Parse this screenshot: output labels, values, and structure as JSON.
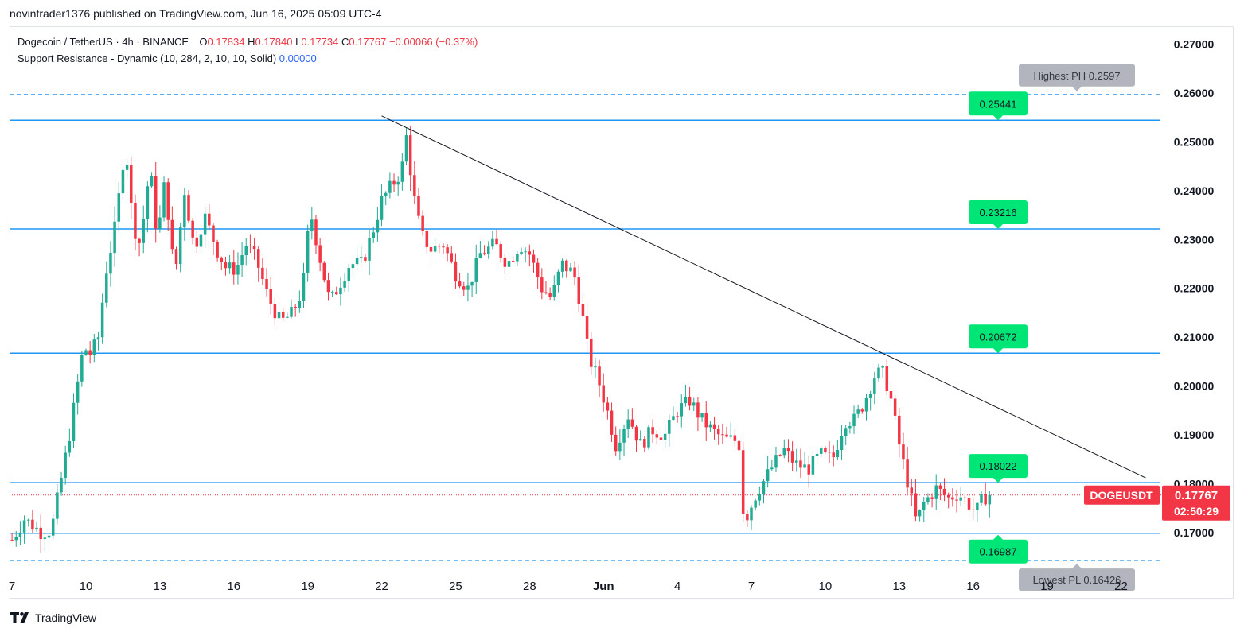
{
  "header": {
    "publish_note": "novintrader1376 published on TradingView.com, Jun 16, 2025 05:09 UTC-4"
  },
  "legend": {
    "symbol": "Dogecoin / TetherUS · 4h · BINANCE",
    "o_label": "O",
    "o_value": "0.17834",
    "h_label": "H",
    "h_value": "0.17840",
    "l_label": "L",
    "l_value": "0.17734",
    "c_label": "C",
    "c_value": "0.17767",
    "change": "−0.00066 (−0.37%)",
    "indicator": "Support Resistance - Dynamic (10, 284, 2, 10, 10, Solid)",
    "indicator_value": "0.00000"
  },
  "footer": {
    "brand": "TradingView"
  },
  "colors": {
    "up": "#22ab94",
    "down": "#f23645",
    "level_line": "#2196f3",
    "level_label_bg": "#00e676",
    "pivot_label_bg": "#b2b5be",
    "trendline": "#131722",
    "price_tag_bg": "#f23645"
  },
  "chart_data": {
    "type": "candlestick",
    "title": "Dogecoin / TetherUS · 4h · BINANCE",
    "ylim": [
      0.1625,
      0.2735
    ],
    "y_ticks": [
      "0.27000",
      "0.26000",
      "0.25000",
      "0.24000",
      "0.23000",
      "0.22000",
      "0.21000",
      "0.20000",
      "0.19000",
      "0.18000",
      "0.17000"
    ],
    "y_tick_values": [
      0.27,
      0.26,
      0.25,
      0.24,
      0.23,
      0.22,
      0.21,
      0.2,
      0.19,
      0.18,
      0.17
    ],
    "x_ticks": [
      "7",
      "10",
      "13",
      "16",
      "19",
      "22",
      "25",
      "28",
      "Jun",
      "4",
      "7",
      "10",
      "13",
      "16",
      "19",
      "22"
    ],
    "x_tick_days": [
      0,
      3,
      6,
      9,
      12,
      15,
      18,
      21,
      24,
      27,
      30,
      33,
      36,
      39,
      42,
      45
    ],
    "day_range": [
      -0.1,
      46.6
    ],
    "levels": [
      {
        "value": 0.25441,
        "label": "0.25441",
        "marker": "down"
      },
      {
        "value": 0.23216,
        "label": "0.23216",
        "marker": "down"
      },
      {
        "value": 0.20672,
        "label": "0.20672",
        "marker": "down"
      },
      {
        "value": 0.18022,
        "label": "0.18022",
        "marker": "down"
      },
      {
        "value": 0.16987,
        "label": "0.16987",
        "marker": "up"
      }
    ],
    "pivots": [
      {
        "value": 0.2597,
        "label": "Highest PH 0.2597"
      },
      {
        "value": 0.16426,
        "label": "Lowest PL 0.16426"
      }
    ],
    "trendline": {
      "from": {
        "day": 15.0,
        "price": 0.2553
      },
      "to": {
        "day": 46.0,
        "price": 0.1812
      }
    },
    "last_price": {
      "value": 0.17767,
      "symbol": "DOGEUSDT",
      "price_label": "0.17767",
      "countdown": "02:50:29"
    },
    "anchors": [
      [
        0.0,
        0.1685
      ],
      [
        0.5,
        0.1728
      ],
      [
        1.2,
        0.17
      ],
      [
        1.6,
        0.1705
      ],
      [
        2.3,
        0.189
      ],
      [
        2.9,
        0.208
      ],
      [
        3.2,
        0.2065
      ],
      [
        3.5,
        0.21
      ],
      [
        3.8,
        0.223
      ],
      [
        4.2,
        0.233
      ],
      [
        4.6,
        0.25
      ],
      [
        4.9,
        0.233
      ],
      [
        5.2,
        0.229
      ],
      [
        5.6,
        0.245
      ],
      [
        5.9,
        0.23
      ],
      [
        6.2,
        0.242
      ],
      [
        6.6,
        0.222
      ],
      [
        7.0,
        0.24
      ],
      [
        7.4,
        0.228
      ],
      [
        7.8,
        0.235
      ],
      [
        8.3,
        0.228
      ],
      [
        8.7,
        0.224
      ],
      [
        9.1,
        0.224
      ],
      [
        9.5,
        0.229
      ],
      [
        9.9,
        0.226
      ],
      [
        10.4,
        0.218
      ],
      [
        10.9,
        0.213
      ],
      [
        11.4,
        0.215
      ],
      [
        11.8,
        0.22
      ],
      [
        12.1,
        0.236
      ],
      [
        12.5,
        0.226
      ],
      [
        12.9,
        0.217
      ],
      [
        13.3,
        0.221
      ],
      [
        13.7,
        0.225
      ],
      [
        14.2,
        0.225
      ],
      [
        14.6,
        0.231
      ],
      [
        15.0,
        0.238
      ],
      [
        15.4,
        0.241
      ],
      [
        15.8,
        0.244
      ],
      [
        16.0,
        0.251
      ],
      [
        16.3,
        0.239
      ],
      [
        16.6,
        0.231
      ],
      [
        17.0,
        0.228
      ],
      [
        17.5,
        0.229
      ],
      [
        18.0,
        0.223
      ],
      [
        18.5,
        0.22
      ],
      [
        19.0,
        0.227
      ],
      [
        19.6,
        0.229
      ],
      [
        20.1,
        0.225
      ],
      [
        20.6,
        0.229
      ],
      [
        21.0,
        0.227
      ],
      [
        21.5,
        0.22
      ],
      [
        21.9,
        0.218
      ],
      [
        22.3,
        0.225
      ],
      [
        22.8,
        0.223
      ],
      [
        23.1,
        0.216
      ],
      [
        23.4,
        0.206
      ],
      [
        23.8,
        0.201
      ],
      [
        24.1,
        0.196
      ],
      [
        24.5,
        0.188
      ],
      [
        25.0,
        0.194
      ],
      [
        25.5,
        0.188
      ],
      [
        26.0,
        0.191
      ],
      [
        26.5,
        0.19
      ],
      [
        27.0,
        0.195
      ],
      [
        27.5,
        0.197
      ],
      [
        28.0,
        0.193
      ],
      [
        28.4,
        0.191
      ],
      [
        28.9,
        0.189
      ],
      [
        29.3,
        0.189
      ],
      [
        29.5,
        0.188
      ],
      [
        29.7,
        0.172
      ],
      [
        30.2,
        0.178
      ],
      [
        30.8,
        0.183
      ],
      [
        31.3,
        0.187
      ],
      [
        31.8,
        0.184
      ],
      [
        32.3,
        0.183
      ],
      [
        32.8,
        0.186
      ],
      [
        33.3,
        0.185
      ],
      [
        33.8,
        0.193
      ],
      [
        34.2,
        0.193
      ],
      [
        34.6,
        0.197
      ],
      [
        35.0,
        0.202
      ],
      [
        35.3,
        0.203
      ],
      [
        35.6,
        0.199
      ],
      [
        36.0,
        0.188
      ],
      [
        36.4,
        0.179
      ],
      [
        36.7,
        0.172
      ],
      [
        37.0,
        0.176
      ],
      [
        37.5,
        0.179
      ],
      [
        38.0,
        0.177
      ],
      [
        38.4,
        0.178
      ],
      [
        38.8,
        0.176
      ],
      [
        39.1,
        0.174
      ],
      [
        39.4,
        0.177
      ],
      [
        39.7,
        0.178
      ]
    ]
  }
}
